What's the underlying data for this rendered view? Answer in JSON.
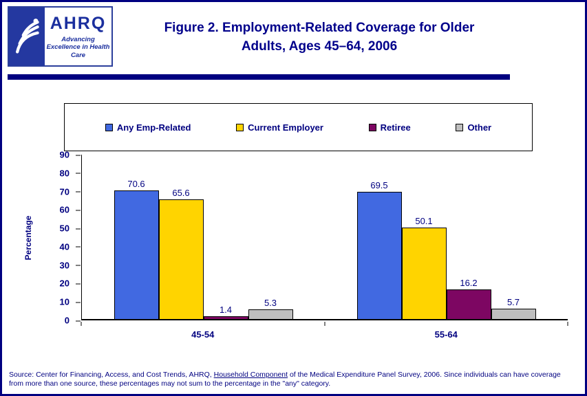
{
  "page": {
    "border_color": "#000080",
    "background": "#FFFFFF",
    "accent_navy": "#000080"
  },
  "header": {
    "logo": {
      "acronym": "AHRQ",
      "tagline": "Advancing Excellence in Health Care",
      "seal": "hhs-eagle"
    },
    "title_line1": "Figure 2. Employment-Related Coverage for Older",
    "title_line2": "Adults, Ages 45–64, 2006"
  },
  "chart_data": {
    "type": "bar",
    "title": "Figure 2. Employment-Related Coverage for Older Adults, Ages 45–64, 2006",
    "categories": [
      "45-54",
      "55-64"
    ],
    "series": [
      {
        "name": "Any Emp-Related",
        "color": "#4169E1",
        "values": [
          70.6,
          69.5
        ]
      },
      {
        "name": "Current Employer",
        "color": "#FFD400",
        "values": [
          65.6,
          50.1
        ]
      },
      {
        "name": "Retiree",
        "color": "#7D0662",
        "values": [
          1.4,
          16.2
        ]
      },
      {
        "name": "Other",
        "color": "#BFBFBF",
        "values": [
          5.3,
          5.7
        ]
      }
    ],
    "xlabel": "",
    "ylabel": "Percentage",
    "ylim": [
      0,
      90
    ],
    "ytick_step": 10,
    "grid": false,
    "legend_position": "top",
    "value_labels": true
  },
  "footer": {
    "source_prefix": "Source: Center for Financing, Access, and Cost Trends, AHRQ, ",
    "source_link": "Household Component",
    "source_suffix": " of the Medical Expenditure Panel Survey, 2006. Since individuals can have coverage from more than one source, these percentages may not sum to the percentage in the \"any\" category."
  }
}
